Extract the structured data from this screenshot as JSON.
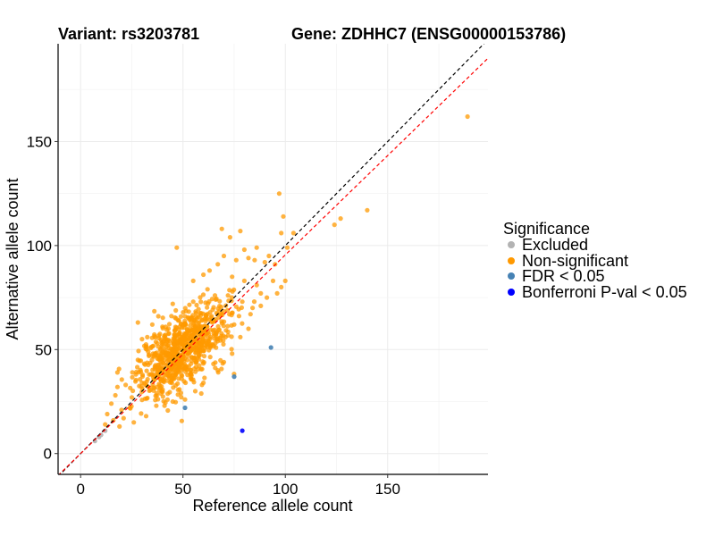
{
  "chart_data": {
    "type": "scatter",
    "title_left": "Variant: rs3203781",
    "title_right": "Gene: ZDHHC7 (ENSG00000153786)",
    "xlabel": "Reference allele count",
    "ylabel": "Alternative allele count",
    "xlim": [
      -11,
      199
    ],
    "ylim": [
      -10,
      197
    ],
    "x_ticks": [
      0,
      50,
      100,
      150
    ],
    "y_ticks": [
      0,
      50,
      100,
      150
    ],
    "grid": true,
    "reference_lines": [
      {
        "name": "identity",
        "slope": 1.0,
        "intercept": 0,
        "color": "#000000",
        "style": "dashed"
      },
      {
        "name": "fit",
        "slope": 0.955,
        "intercept": 0,
        "color": "#ff0000",
        "style": "dashed"
      }
    ],
    "legend": {
      "title": "Significance",
      "position": "right",
      "entries": [
        {
          "label": "Excluded",
          "color": "#b3b3b3"
        },
        {
          "label": "Non-significant",
          "color": "#ff9900"
        },
        {
          "label": "FDR < 0.05",
          "color": "#4682b4"
        },
        {
          "label": "Bonferroni P-val < 0.05",
          "color": "#0000ff"
        }
      ]
    },
    "series": [
      {
        "name": "Excluded",
        "color": "#b3b3b3",
        "points": [
          [
            7,
            6
          ],
          [
            10,
            9
          ],
          [
            12,
            11
          ],
          [
            9,
            8
          ]
        ]
      },
      {
        "name": "Non-significant",
        "color": "#ff9900",
        "cluster": {
          "count": 820,
          "center": [
            50,
            50
          ],
          "sd": [
            11,
            11
          ],
          "correlation": 0.6,
          "seed": 3203781
        },
        "points": [
          [
            189,
            162
          ],
          [
            140,
            117
          ],
          [
            127,
            113
          ],
          [
            124,
            110
          ],
          [
            104,
            106
          ],
          [
            97,
            125
          ],
          [
            99,
            114
          ],
          [
            98,
            106
          ],
          [
            101,
            99
          ],
          [
            95,
            91
          ],
          [
            98,
            80
          ],
          [
            100,
            83
          ],
          [
            96,
            77
          ],
          [
            94,
            83
          ],
          [
            92,
            95
          ],
          [
            90,
            92
          ],
          [
            86,
            99
          ],
          [
            85,
            93
          ],
          [
            78,
            107
          ],
          [
            80,
            98
          ],
          [
            82,
            94
          ],
          [
            76,
            93
          ],
          [
            73,
            104
          ],
          [
            69,
            108
          ],
          [
            70,
            95
          ],
          [
            67,
            91
          ],
          [
            74,
            85
          ],
          [
            63,
            88
          ],
          [
            60,
            86
          ],
          [
            62,
            79
          ],
          [
            88,
            77
          ],
          [
            84,
            70
          ],
          [
            47,
            99
          ],
          [
            55,
            83
          ],
          [
            40,
            61
          ],
          [
            35,
            62
          ],
          [
            28,
            63
          ],
          [
            30,
            55
          ],
          [
            18,
            39
          ],
          [
            17,
            28
          ],
          [
            13,
            19
          ],
          [
            15,
            24
          ],
          [
            20,
            21
          ],
          [
            25,
            27
          ],
          [
            18,
            32
          ],
          [
            22,
            33
          ],
          [
            28,
            45
          ],
          [
            33,
            49
          ],
          [
            38,
            66
          ],
          [
            45,
            72
          ],
          [
            55,
            73
          ],
          [
            75,
            62
          ],
          [
            78,
            56
          ],
          [
            82,
            60
          ],
          [
            83,
            67
          ],
          [
            74,
            48
          ],
          [
            70,
            44
          ],
          [
            67,
            40
          ],
          [
            60,
            34
          ],
          [
            56,
            30
          ],
          [
            51,
            26
          ],
          [
            45,
            25
          ],
          [
            41,
            23
          ],
          [
            37,
            23
          ],
          [
            32,
            18
          ],
          [
            26,
            15
          ],
          [
            21,
            17
          ],
          [
            30,
            34
          ],
          [
            27,
            38
          ],
          [
            12,
            14
          ],
          [
            16,
            16
          ],
          [
            19,
            13
          ],
          [
            24,
            22
          ],
          [
            66,
            74
          ],
          [
            72,
            76
          ],
          [
            79,
            73
          ],
          [
            86,
            81
          ],
          [
            88,
            71
          ],
          [
            91,
            75
          ],
          [
            80,
            83
          ],
          [
            64,
            66
          ],
          [
            58,
            61
          ],
          [
            61,
            58
          ]
        ]
      },
      {
        "name": "FDR < 0.05",
        "color": "#4682b4",
        "points": [
          [
            93,
            51
          ],
          [
            75,
            37
          ],
          [
            51,
            22
          ]
        ]
      },
      {
        "name": "Bonferroni P-val < 0.05",
        "color": "#0000ff",
        "points": [
          [
            79,
            11
          ]
        ]
      }
    ]
  }
}
